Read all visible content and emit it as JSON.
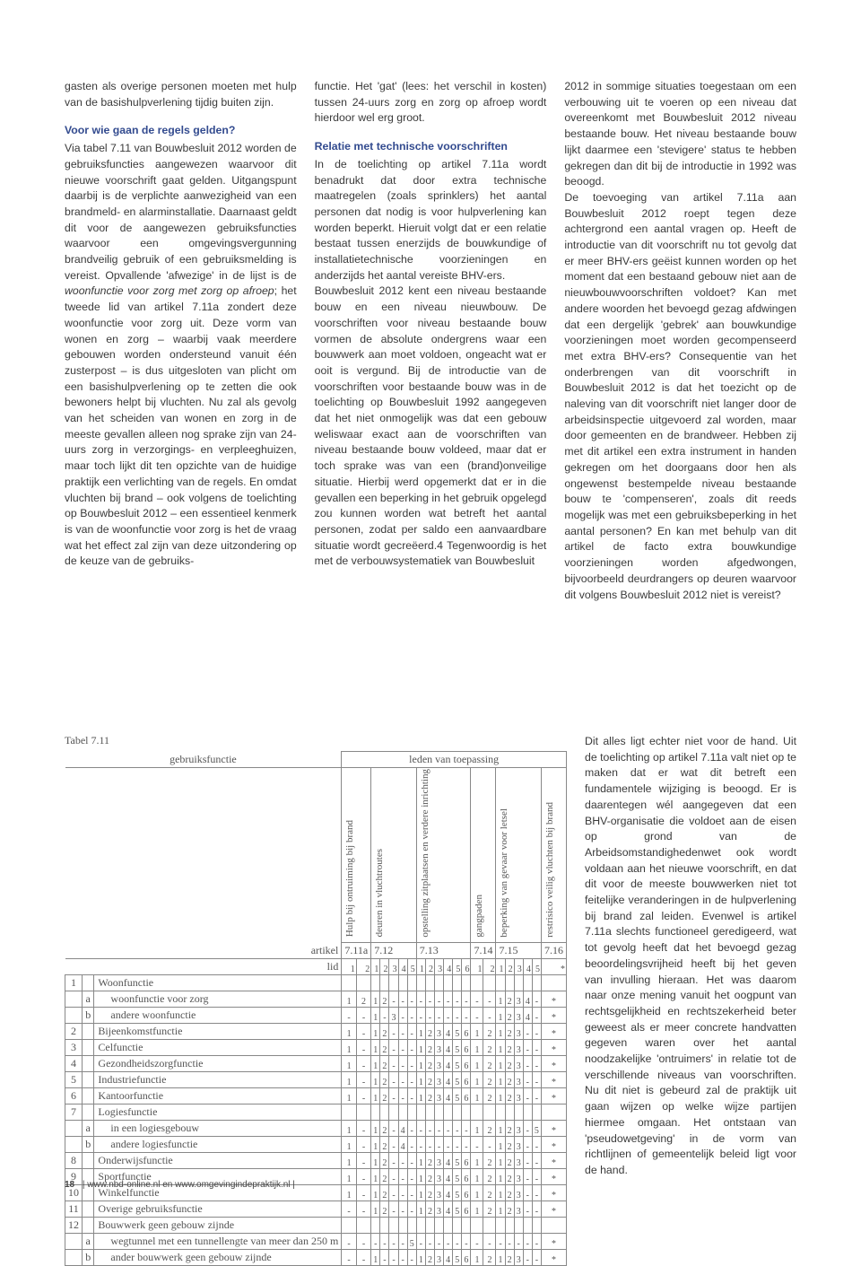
{
  "colors": {
    "heading": "#334b8f",
    "text": "#3a3a3a",
    "table_text": "#555555",
    "table_border": "#888888",
    "background": "#ffffff"
  },
  "footer": {
    "page_number": "18",
    "text": "www.nbd-online.nl en www.omgevingindepraktijk.nl |"
  },
  "col1": {
    "p1": "gasten als overige personen moeten met hulp van de basishulpverlening tijdig buiten zijn.",
    "h2": "Voor wie gaan de regels gelden?",
    "p2a": "Via tabel 7.11 van Bouwbesluit 2012 worden de gebruiksfuncties aangewezen waarvoor dit nieuwe voorschrift gaat gelden. Uitgangspunt daarbij is de verplichte aanwezigheid van een brandmeld- en alarminstallatie. Daarnaast geldt dit voor de aangewezen gebruiksfuncties waarvoor een omgevingsvergunning brandveilig gebruik of een gebruiksmelding is vereist. Opvallende 'afwezige' in de lijst is de ",
    "p2_italic": "woonfunctie voor zorg met zorg op afroep",
    "p2b": "; het tweede lid van artikel 7.11a zondert deze woonfunctie voor zorg uit. Deze vorm van wonen en zorg – waarbij vaak meerdere gebouwen worden ondersteund vanuit één zusterpost – is dus uitgesloten van plicht om een basishulpverlening op te zetten die ook bewoners helpt bij vluchten. Nu zal als gevolg van het scheiden van wonen en zorg in de meeste gevallen alleen nog sprake zijn van 24-uurs zorg in verzorgings- en verpleeghuizen, maar toch lijkt dit ten opzichte van de huidige praktijk een verlichting van de regels. En omdat vluchten bij brand – ook volgens de toelichting op Bouwbesluit 2012 – een essentieel kenmerk is van de woonfunctie voor zorg is het de vraag wat het effect zal zijn van deze uitzondering op de keuze van de gebruiks-"
  },
  "col2": {
    "p1": "functie. Het 'gat' (lees: het verschil in kosten) tussen 24-uurs zorg en zorg op afroep wordt hierdoor wel erg groot.",
    "h2": "Relatie met technische voorschriften",
    "p2": "In de toelichting op artikel 7.11a wordt benadrukt dat door extra technische maatregelen (zoals sprinklers) het aantal personen dat nodig is voor hulpverlening kan worden beperkt. Hieruit volgt dat er een relatie bestaat tussen enerzijds de bouwkundige of installatietechnische voorzieningen en anderzijds het aantal vereiste BHV-ers.",
    "p3": "Bouwbesluit 2012 kent een niveau bestaande bouw en een niveau nieuwbouw. De voorschriften voor niveau bestaande bouw vormen de absolute ondergrens waar een bouwwerk aan moet voldoen, ongeacht wat er ooit is vergund. Bij de introductie van de voorschriften voor bestaande bouw was in de toelichting op Bouwbesluit 1992 aangegeven dat het niet onmogelijk was dat een gebouw weliswaar exact aan de voorschriften van niveau bestaande bouw voldeed, maar dat er toch sprake was van een (brand)onveilige situatie. Hierbij werd opgemerkt dat er in die gevallen een beperking in het gebruik opgelegd zou kunnen worden wat betreft het aantal personen, zodat per saldo een aanvaardbare situatie wordt gecreëerd.4 Tegenwoordig is het met de verbouwsystematiek van Bouwbesluit"
  },
  "col3_top": {
    "p1": "2012 in sommige situaties toegestaan om een verbouwing uit te voeren op een niveau dat overeenkomt met Bouwbesluit 2012 niveau bestaande bouw. Het niveau bestaande bouw lijkt daarmee een 'stevigere' status te hebben gekregen dan dit bij de introductie in 1992 was beoogd.",
    "p2": "De toevoeging van artikel 7.11a aan Bouwbesluit 2012 roept tegen deze achtergrond een aantal vragen op. Heeft de introductie van dit voorschrift nu tot gevolg dat er meer BHV-ers geëist kunnen worden op het moment dat een bestaand gebouw niet aan de nieuwbouwvoorschriften voldoet? Kan met andere woorden het bevoegd gezag afdwingen dat een dergelijk 'gebrek' aan bouwkundige voorzieningen moet worden gecompenseerd met extra BHV-ers? Consequentie van het onderbrengen van dit voorschrift in Bouwbesluit 2012 is dat het toezicht op de naleving van dit voorschrift niet langer door de arbeidsinspectie uitgevoerd zal worden, maar door gemeenten en de brandweer. Hebben zij met dit artikel een extra instrument in handen gekregen om het doorgaans door hen als ongewenst bestempelde niveau bestaande bouw te 'compenseren', zoals dit reeds mogelijk was met een gebruiksbeperking in het aantal personen? En kan met behulp van dit artikel de facto extra bouwkundige voorzieningen worden afgedwongen, bijvoorbeeld deurdrangers op deuren waarvoor dit volgens Bouwbesluit 2012 niet is vereist?"
  },
  "col3_below": {
    "p1": "Dit alles ligt echter niet voor de hand. Uit de toelichting op artikel 7.11a valt niet op te maken dat er wat dit betreft een fundamentele wijziging is beoogd. Er is daarentegen wél aangegeven dat een BHV-organisatie die voldoet aan de eisen op grond van de Arbeidsomstandighedenwet ook wordt voldaan aan het nieuwe voorschrift, en dat dit voor de meeste bouwwerken niet tot feitelijke veranderingen in de hulpverlening bij brand zal leiden. Evenwel is artikel 7.11a slechts functioneel geredigeerd, wat tot gevolg heeft dat het bevoegd gezag beoordelingsvrijheid heeft bij het geven van invulling hieraan. Het was daarom naar onze mening vanuit het oogpunt van rechtsgelijkheid en rechtszekerheid beter geweest als er meer concrete handvatten gegeven waren over het aantal noodzakelijke 'ontruimers' in relatie tot de verschillende niveaus van voorschriften. Nu dit niet is gebeurd zal de praktijk uit gaan wijzen op welke wijze partijen hiermee omgaan. Het ontstaan van 'pseudowetgeving' in de vorm van richtlijnen of gemeentelijk beleid ligt voor de hand."
  },
  "table": {
    "caption": "Tabel 7.11",
    "main_head_left": "gebruiksfunctie",
    "main_head_right": "leden van toepassing",
    "vheaders": [
      "Hulp bij ontruiming bij brand",
      "deuren in vluchtroutes",
      "opstelling zitplaatsen en verdere inrichting",
      "gangpaden",
      "beperking van gevaar voor letsel",
      "restrisico veilig vluchten bij brand"
    ],
    "art_row": {
      "label": "artikel",
      "vals": [
        "7.11a",
        "7.12",
        "7.13",
        "7.14",
        "7.15",
        "7.16"
      ]
    },
    "lid_row": {
      "label": "lid",
      "vals": [
        "1",
        "2",
        "1",
        "2",
        "3",
        "4",
        "5",
        "1",
        "2",
        "3",
        "4",
        "5",
        "6",
        "1",
        "2",
        "1",
        "2",
        "3",
        "4",
        "5",
        "*"
      ]
    },
    "rows": [
      {
        "n": "1",
        "s": "",
        "name": "Woonfunctie",
        "c": [
          "",
          "",
          "",
          "",
          "",
          "",
          "",
          "",
          "",
          "",
          "",
          "",
          "",
          "",
          "",
          "",
          "",
          "",
          "",
          "",
          ""
        ]
      },
      {
        "n": "",
        "s": "a",
        "name": "woonfunctie voor zorg",
        "indent": true,
        "c": [
          "1",
          "2",
          "1",
          "2",
          "-",
          "-",
          "-",
          "-",
          "-",
          "-",
          "-",
          "-",
          "-",
          "-",
          "-",
          "1",
          "2",
          "3",
          "4",
          "-",
          "*"
        ]
      },
      {
        "n": "",
        "s": "b",
        "name": "andere woonfunctie",
        "indent": true,
        "c": [
          "-",
          "-",
          "1",
          "-",
          "3",
          "-",
          "-",
          "-",
          "-",
          "-",
          "-",
          "-",
          "-",
          "-",
          "-",
          "1",
          "2",
          "3",
          "4",
          "-",
          "*"
        ]
      },
      {
        "n": "2",
        "s": "",
        "name": "Bijeenkomstfunctie",
        "c": [
          "1",
          "-",
          "1",
          "2",
          "-",
          "-",
          "-",
          "1",
          "2",
          "3",
          "4",
          "5",
          "6",
          "1",
          "2",
          "1",
          "2",
          "3",
          "-",
          "-",
          "*"
        ]
      },
      {
        "n": "3",
        "s": "",
        "name": "Celfunctie",
        "c": [
          "1",
          "-",
          "1",
          "2",
          "-",
          "-",
          "-",
          "1",
          "2",
          "3",
          "4",
          "5",
          "6",
          "1",
          "2",
          "1",
          "2",
          "3",
          "-",
          "-",
          "*"
        ]
      },
      {
        "n": "4",
        "s": "",
        "name": "Gezondheidszorgfunctie",
        "c": [
          "1",
          "-",
          "1",
          "2",
          "-",
          "-",
          "-",
          "1",
          "2",
          "3",
          "4",
          "5",
          "6",
          "1",
          "2",
          "1",
          "2",
          "3",
          "-",
          "-",
          "*"
        ]
      },
      {
        "n": "5",
        "s": "",
        "name": "Industriefunctie",
        "c": [
          "1",
          "-",
          "1",
          "2",
          "-",
          "-",
          "-",
          "1",
          "2",
          "3",
          "4",
          "5",
          "6",
          "1",
          "2",
          "1",
          "2",
          "3",
          "-",
          "-",
          "*"
        ]
      },
      {
        "n": "6",
        "s": "",
        "name": "Kantoorfunctie",
        "c": [
          "1",
          "-",
          "1",
          "2",
          "-",
          "-",
          "-",
          "1",
          "2",
          "3",
          "4",
          "5",
          "6",
          "1",
          "2",
          "1",
          "2",
          "3",
          "-",
          "-",
          "*"
        ]
      },
      {
        "n": "7",
        "s": "",
        "name": "Logiesfunctie",
        "c": [
          "",
          "",
          "",
          "",
          "",
          "",
          "",
          "",
          "",
          "",
          "",
          "",
          "",
          "",
          "",
          "",
          "",
          "",
          "",
          "",
          ""
        ]
      },
      {
        "n": "",
        "s": "a",
        "name": "in een logiesgebouw",
        "indent": true,
        "c": [
          "1",
          "-",
          "1",
          "2",
          "-",
          "4",
          "-",
          "-",
          "-",
          "-",
          "-",
          "-",
          "-",
          "1",
          "2",
          "1",
          "2",
          "3",
          "-",
          "5",
          "*"
        ]
      },
      {
        "n": "",
        "s": "b",
        "name": "andere logiesfunctie",
        "indent": true,
        "c": [
          "1",
          "-",
          "1",
          "2",
          "-",
          "4",
          "-",
          "-",
          "-",
          "-",
          "-",
          "-",
          "-",
          "-",
          "-",
          "1",
          "2",
          "3",
          "-",
          "-",
          "*"
        ]
      },
      {
        "n": "8",
        "s": "",
        "name": "Onderwijsfunctie",
        "c": [
          "1",
          "-",
          "1",
          "2",
          "-",
          "-",
          "-",
          "1",
          "2",
          "3",
          "4",
          "5",
          "6",
          "1",
          "2",
          "1",
          "2",
          "3",
          "-",
          "-",
          "*"
        ]
      },
      {
        "n": "9",
        "s": "",
        "name": "Sportfunctie",
        "c": [
          "1",
          "-",
          "1",
          "2",
          "-",
          "-",
          "-",
          "1",
          "2",
          "3",
          "4",
          "5",
          "6",
          "1",
          "2",
          "1",
          "2",
          "3",
          "-",
          "-",
          "*"
        ]
      },
      {
        "n": "10",
        "s": "",
        "name": "Winkelfunctie",
        "c": [
          "1",
          "-",
          "1",
          "2",
          "-",
          "-",
          "-",
          "1",
          "2",
          "3",
          "4",
          "5",
          "6",
          "1",
          "2",
          "1",
          "2",
          "3",
          "-",
          "-",
          "*"
        ]
      },
      {
        "n": "11",
        "s": "",
        "name": "Overige gebruiksfunctie",
        "c": [
          "-",
          "-",
          "1",
          "2",
          "-",
          "-",
          "-",
          "1",
          "2",
          "3",
          "4",
          "5",
          "6",
          "1",
          "2",
          "1",
          "2",
          "3",
          "-",
          "-",
          "*"
        ]
      },
      {
        "n": "12",
        "s": "",
        "name": "Bouwwerk geen gebouw zijnde",
        "c": [
          "",
          "",
          "",
          "",
          "",
          "",
          "",
          "",
          "",
          "",
          "",
          "",
          "",
          "",
          "",
          "",
          "",
          "",
          "",
          "",
          ""
        ]
      },
      {
        "n": "",
        "s": "a",
        "name": "wegtunnel met een tunnellengte van meer dan 250 m",
        "indent": true,
        "c": [
          "-",
          "-",
          "-",
          "-",
          "-",
          "-",
          "5",
          "-",
          "-",
          "-",
          "-",
          "-",
          "-",
          "-",
          "-",
          "-",
          "-",
          "-",
          "-",
          "-",
          "*"
        ]
      },
      {
        "n": "",
        "s": "b",
        "name": "ander bouwwerk geen gebouw zijnde",
        "indent": true,
        "c": [
          "-",
          "-",
          "1",
          "-",
          "-",
          "-",
          "-",
          "1",
          "2",
          "3",
          "4",
          "5",
          "6",
          "1",
          "2",
          "1",
          "2",
          "3",
          "-",
          "-",
          "*"
        ]
      }
    ]
  }
}
